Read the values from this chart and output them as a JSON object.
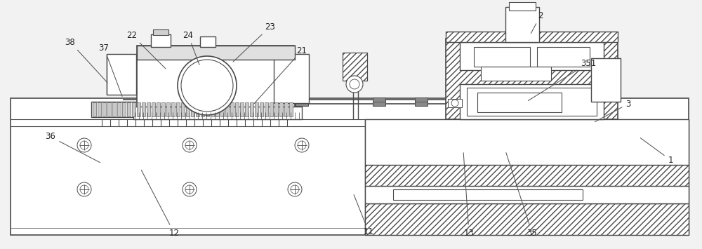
{
  "bg_color": "#f2f2f2",
  "line_color": "#4a4a4a",
  "fig_width": 10.0,
  "fig_height": 3.55,
  "dpi": 100,
  "annotations": [
    [
      "1",
      955,
      228,
      910,
      195
    ],
    [
      "2",
      770,
      22,
      755,
      50
    ],
    [
      "3",
      895,
      148,
      845,
      175
    ],
    [
      "11",
      525,
      330,
      503,
      275
    ],
    [
      "12",
      248,
      332,
      200,
      240
    ],
    [
      "13",
      668,
      332,
      660,
      215
    ],
    [
      "21",
      430,
      72,
      360,
      150
    ],
    [
      "22",
      188,
      50,
      238,
      100
    ],
    [
      "23",
      385,
      38,
      330,
      90
    ],
    [
      "24",
      268,
      50,
      285,
      95
    ],
    [
      "35",
      758,
      332,
      720,
      215
    ],
    [
      "351",
      838,
      90,
      750,
      145
    ],
    [
      "36",
      72,
      195,
      145,
      233
    ],
    [
      "37",
      148,
      68,
      175,
      140
    ],
    [
      "38",
      100,
      60,
      155,
      120
    ]
  ]
}
